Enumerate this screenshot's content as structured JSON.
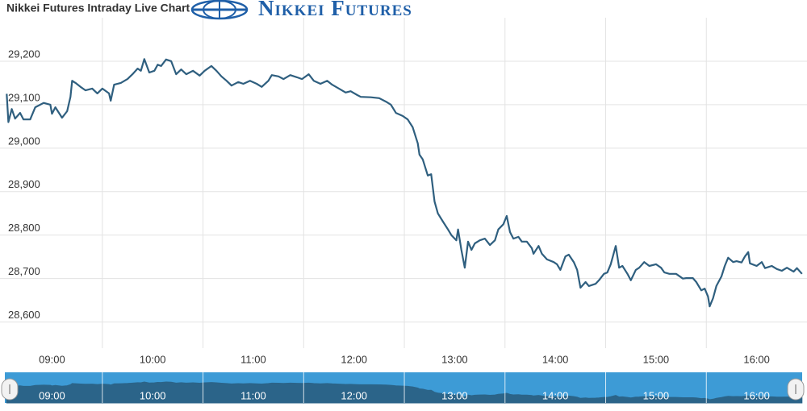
{
  "chart_data": {
    "type": "line",
    "title": "Nikkei Futures Intraday Live Chart",
    "logo": "Nikkei Futures",
    "color": "#2f5f7f",
    "grid": true,
    "navigator": true,
    "x": [
      "08:33",
      "08:34",
      "08:36",
      "08:38",
      "08:41",
      "08:43",
      "08:47",
      "08:50",
      "08:55",
      "08:59",
      "09:00",
      "09:02",
      "09:06",
      "09:09",
      "09:11",
      "09:12",
      "09:14",
      "09:17",
      "09:20",
      "09:24",
      "09:27",
      "09:30",
      "09:34",
      "09:35",
      "09:37",
      "09:41",
      "09:45",
      "09:48",
      "09:51",
      "09:53",
      "09:55",
      "09:58",
      "10:01",
      "10:03",
      "10:05",
      "10:08",
      "10:11",
      "10:14",
      "10:17",
      "10:20",
      "10:24",
      "10:28",
      "10:31",
      "10:35",
      "10:38",
      "10:41",
      "10:44",
      "10:47",
      "10:51",
      "10:54",
      "10:58",
      "11:02",
      "11:05",
      "11:09",
      "11:11",
      "11:15",
      "11:18",
      "11:22",
      "11:26",
      "11:29",
      "11:33",
      "11:36",
      "11:40",
      "11:44",
      "11:47",
      "11:51",
      "11:55",
      "11:58",
      "12:02",
      "12:04",
      "12:10",
      "12:15",
      "12:19",
      "12:22",
      "12:25",
      "12:29",
      "12:32",
      "12:35",
      "12:38",
      "12:39",
      "12:41",
      "12:44",
      "12:46",
      "12:48",
      "12:50",
      "12:53",
      "12:56",
      "12:58",
      "13:01",
      "13:02",
      "13:04",
      "13:06",
      "13:08",
      "13:10",
      "13:12",
      "13:15",
      "13:18",
      "13:21",
      "13:24",
      "13:26",
      "13:29",
      "13:31",
      "13:33",
      "13:35",
      "13:38",
      "13:40",
      "13:43",
      "13:46",
      "13:47",
      "13:50",
      "13:52",
      "13:55",
      "13:59",
      "14:01",
      "14:03",
      "14:06",
      "14:08",
      "14:11",
      "14:13",
      "14:15",
      "14:18",
      "14:20",
      "14:24",
      "14:26",
      "14:29",
      "14:31",
      "14:33",
      "14:36",
      "14:38",
      "14:40",
      "14:43",
      "14:45",
      "14:48",
      "14:50",
      "14:53",
      "14:56",
      "15:00",
      "15:03",
      "15:05",
      "15:08",
      "15:12",
      "15:16",
      "15:18",
      "15:22",
      "15:24",
      "15:27",
      "15:29",
      "15:31",
      "15:32",
      "15:34",
      "15:36",
      "15:39",
      "15:41",
      "15:43",
      "15:46",
      "15:48",
      "15:51",
      "15:53",
      "15:55",
      "15:56",
      "16:00",
      "16:03",
      "16:05",
      "16:09",
      "16:12",
      "16:15",
      "16:18",
      "16:22",
      "16:24",
      "16:27"
    ],
    "values": [
      29125,
      29060,
      29090,
      29068,
      29081,
      29066,
      29066,
      29094,
      29104,
      29100,
      29079,
      29094,
      29070,
      29085,
      29118,
      29155,
      29150,
      29141,
      29133,
      29137,
      29126,
      29137,
      29126,
      29109,
      29146,
      29150,
      29159,
      29170,
      29183,
      29178,
      29205,
      29174,
      29178,
      29192,
      29189,
      29204,
      29200,
      29170,
      29181,
      29170,
      29178,
      29167,
      29178,
      29189,
      29178,
      29165,
      29155,
      29144,
      29152,
      29148,
      29155,
      29148,
      29141,
      29155,
      29168,
      29165,
      29159,
      29168,
      29163,
      29159,
      29170,
      29155,
      29148,
      29155,
      29146,
      29137,
      29128,
      29131,
      29122,
      29118,
      29117,
      29115,
      29107,
      29100,
      29081,
      29074,
      29066,
      29048,
      29011,
      28985,
      28974,
      28937,
      28940,
      28877,
      28850,
      28831,
      28813,
      28800,
      28788,
      28813,
      28766,
      28725,
      28785,
      28766,
      28781,
      28788,
      28792,
      28777,
      28788,
      28813,
      28825,
      28844,
      28807,
      28792,
      28796,
      28785,
      28785,
      28770,
      28757,
      28775,
      28757,
      28744,
      28738,
      28733,
      28720,
      28751,
      28755,
      28738,
      28720,
      28679,
      28692,
      28683,
      28688,
      28696,
      28711,
      28714,
      28733,
      28775,
      28725,
      28729,
      28711,
      28696,
      28720,
      28725,
      28738,
      28729,
      28733,
      28725,
      28714,
      28711,
      28711,
      28700,
      28701,
      28701,
      28692,
      28673,
      28677,
      28659,
      28636,
      28655,
      28683,
      28705,
      28729,
      28748,
      28738,
      28740,
      28737,
      28751,
      28761,
      28735,
      28729,
      28738,
      28724,
      28729,
      28722,
      28718,
      28725,
      28716,
      28724,
      28711
    ],
    "xlim": [
      "08:29",
      "16:30"
    ],
    "xticks": [
      "09:00",
      "10:00",
      "11:00",
      "12:00",
      "13:00",
      "14:00",
      "15:00",
      "16:00"
    ],
    "ylim": [
      28540,
      29300
    ],
    "yticks": [
      {
        "value": 28600,
        "label": "28,600"
      },
      {
        "value": 28700,
        "label": "28,700"
      },
      {
        "value": 28800,
        "label": "28,800"
      },
      {
        "value": 28900,
        "label": "28,900"
      },
      {
        "value": 29000,
        "label": "29,000"
      },
      {
        "value": 29100,
        "label": "29,100"
      },
      {
        "value": 29200,
        "label": "29,200"
      }
    ]
  }
}
